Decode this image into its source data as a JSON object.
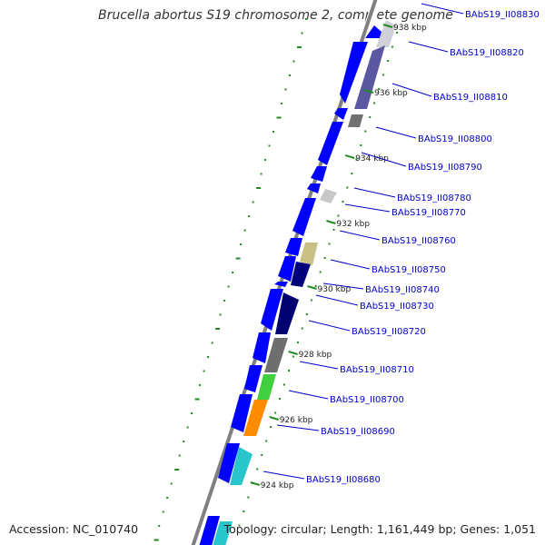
{
  "title": "Brucella abortus S19 chromosome 2, complete genome",
  "footer": {
    "accession": "Accession: NC_010740",
    "summary": "Topology: circular; Length: 1,161,449 bp; Genes: 1,051"
  },
  "colors": {
    "backbone": "#808080",
    "cds_strand": "#0000ff",
    "label": "#0000cc",
    "tick": "#228b22"
  },
  "kbp_ticks": [
    {
      "kbp": 938,
      "label": "938 kbp"
    },
    {
      "kbp": 936,
      "label": "936 kbp"
    },
    {
      "kbp": 934,
      "label": "934 kbp"
    },
    {
      "kbp": 932,
      "label": "932 kbp"
    },
    {
      "kbp": 930,
      "label": "930 kbp"
    },
    {
      "kbp": 928,
      "label": "928 kbp"
    },
    {
      "kbp": 926,
      "label": "926 kbp"
    },
    {
      "kbp": 924,
      "label": "924 kbp"
    }
  ],
  "genes": [
    {
      "label": "BAbS19_II08830",
      "color": "#d0d0d8"
    },
    {
      "label": "BAbS19_II08820",
      "color": "#d0d0d8"
    },
    {
      "label": "BAbS19_II08810",
      "color": "#54509a"
    },
    {
      "label": "BAbS19_II08800",
      "color": "#707070"
    },
    {
      "label": "BAbS19_II08790",
      "color": "#0000ff"
    },
    {
      "label": "BAbS19_II08780",
      "color": "#c8c8c8"
    },
    {
      "label": "BAbS19_II08770",
      "color": "#0000ff"
    },
    {
      "label": "BAbS19_II08760",
      "color": "#0000ff"
    },
    {
      "label": "BAbS19_II08750",
      "color": "#c9c085"
    },
    {
      "label": "BAbS19_II08740",
      "color": "#00007a"
    },
    {
      "label": "BAbS19_II08730",
      "color": "#0000ff"
    },
    {
      "label": "BAbS19_II08720",
      "color": "#000070"
    },
    {
      "label": "BAbS19_II08710",
      "color": "#6e6e6e"
    },
    {
      "label": "BAbS19_II08700",
      "color": "#3fcf3f"
    },
    {
      "label": "BAbS19_II08690",
      "color": "#ff8c00"
    },
    {
      "label": "BAbS19_II08680",
      "color": "#29c5cc"
    }
  ]
}
